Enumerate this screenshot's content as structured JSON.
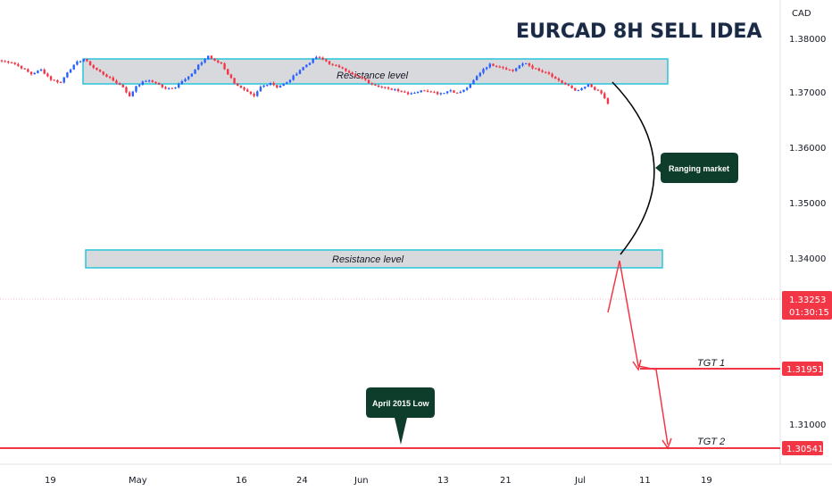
{
  "chart_data": {
    "type": "candlestick",
    "title": "EURCAD 8H SELL IDEA",
    "currency": "CAD",
    "y_ticks": [
      "1.38000",
      "1.37000",
      "1.36000",
      "1.35000",
      "1.34000",
      "1.31000"
    ],
    "x_ticks": [
      "19",
      "May",
      "16",
      "24",
      "Jun",
      "13",
      "21",
      "Jul",
      "11",
      "19"
    ],
    "current_price": "1.33253",
    "countdown": "01:30:15",
    "resistance_zones": [
      {
        "label": "Resistance level",
        "low": 1.3717,
        "high": 1.3754
      },
      {
        "label": "Resistance level",
        "low": 1.3386,
        "high": 1.3418
      }
    ],
    "targets": [
      {
        "label": "TGT 1",
        "price": "1.31951"
      },
      {
        "label": "TGT 2",
        "price": "1.30541"
      }
    ],
    "annotations": {
      "ranging": "Ranging market",
      "april_low": "April 2015 Low"
    },
    "price_path": [
      [
        0,
        1.372
      ],
      [
        3,
        1.371
      ],
      [
        6,
        1.366
      ],
      [
        9,
        1.36
      ],
      [
        12,
        1.364
      ],
      [
        15,
        1.355
      ],
      [
        18,
        1.352
      ],
      [
        20,
        1.362
      ],
      [
        23,
        1.371
      ],
      [
        25,
        1.374
      ],
      [
        28,
        1.366
      ],
      [
        31,
        1.36
      ],
      [
        34,
        1.354
      ],
      [
        37,
        1.348
      ],
      [
        39,
        1.339
      ],
      [
        41,
        1.349
      ],
      [
        44,
        1.354
      ],
      [
        47,
        1.352
      ],
      [
        50,
        1.346
      ],
      [
        53,
        1.348
      ],
      [
        55,
        1.354
      ],
      [
        58,
        1.36
      ],
      [
        60,
        1.368
      ],
      [
        63,
        1.377
      ],
      [
        65,
        1.372
      ],
      [
        67,
        1.37
      ],
      [
        69,
        1.36
      ],
      [
        71,
        1.352
      ],
      [
        73,
        1.347
      ],
      [
        75,
        1.343
      ],
      [
        77,
        1.339
      ],
      [
        79,
        1.348
      ],
      [
        82,
        1.352
      ],
      [
        84,
        1.348
      ],
      [
        87,
        1.352
      ],
      [
        89,
        1.358
      ],
      [
        91,
        1.364
      ],
      [
        94,
        1.371
      ],
      [
        96,
        1.376
      ],
      [
        99,
        1.372
      ],
      [
        101,
        1.368
      ],
      [
        104,
        1.366
      ],
      [
        106,
        1.361
      ],
      [
        108,
        1.358
      ],
      [
        110,
        1.356
      ],
      [
        112,
        1.352
      ],
      [
        114,
        1.35
      ],
      [
        116,
        1.348
      ],
      [
        118,
        1.346
      ],
      [
        120,
        1.346
      ],
      [
        122,
        1.344
      ],
      [
        124,
        1.342
      ],
      [
        126,
        1.343
      ],
      [
        129,
        1.345
      ],
      [
        131,
        1.344
      ],
      [
        133,
        1.342
      ],
      [
        135,
        1.343
      ],
      [
        137,
        1.345
      ],
      [
        139,
        1.342
      ],
      [
        141,
        1.345
      ],
      [
        143,
        1.35
      ],
      [
        145,
        1.358
      ],
      [
        147,
        1.365
      ],
      [
        149,
        1.369
      ],
      [
        152,
        1.367
      ],
      [
        154,
        1.365
      ],
      [
        156,
        1.363
      ],
      [
        158,
        1.368
      ],
      [
        160,
        1.37
      ],
      [
        162,
        1.366
      ],
      [
        164,
        1.363
      ],
      [
        167,
        1.36
      ],
      [
        169,
        1.355
      ],
      [
        171,
        1.352
      ],
      [
        173,
        1.349
      ],
      [
        175,
        1.344
      ],
      [
        177,
        1.346
      ],
      [
        179,
        1.35
      ],
      [
        181,
        1.346
      ],
      [
        183,
        1.342
      ],
      [
        185,
        1.3325
      ]
    ]
  }
}
